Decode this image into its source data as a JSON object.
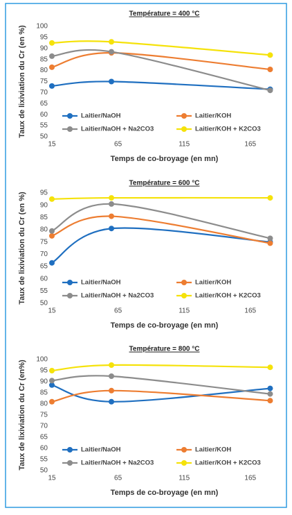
{
  "chart_data": [
    {
      "type": "line",
      "title": "Température = 400 °C",
      "x_label": "Temps de co-broyage (en mn)",
      "y_label": "Taux de lixiviation du Cr (en %)",
      "x": [
        15,
        60,
        180
      ],
      "xlim": [
        15,
        185
      ],
      "xticks": [
        15,
        65,
        115,
        165
      ],
      "ylim": [
        50,
        100
      ],
      "yticks": [
        50,
        55,
        60,
        65,
        70,
        75,
        80,
        85,
        90,
        95,
        100
      ],
      "series": [
        {
          "name": "Laitier/NaOH",
          "color": "#1f6fc0",
          "values": [
            73,
            75,
            71.5
          ]
        },
        {
          "name": "Laitier/KOH",
          "color": "#ed7d31",
          "values": [
            81.5,
            88,
            80.5
          ]
        },
        {
          "name": "Laitier/NaOH + Na2CO3",
          "color": "#8c8c8c",
          "values": [
            86.5,
            88.5,
            71
          ]
        },
        {
          "name": "Laitier/KOH + K2CO3",
          "color": "#f5e20a",
          "values": [
            92.5,
            93,
            87
          ]
        }
      ]
    },
    {
      "type": "line",
      "title": "Température = 600 °C",
      "x_label": "Temps de co-broyage (en mn)",
      "y_label": "Taux de lixiviation du Cr (en %)",
      "x": [
        15,
        60,
        180
      ],
      "xlim": [
        15,
        185
      ],
      "xticks": [
        15,
        65,
        115,
        165
      ],
      "ylim": [
        50,
        95
      ],
      "yticks": [
        50,
        55,
        60,
        65,
        70,
        75,
        80,
        85,
        90,
        95
      ],
      "series": [
        {
          "name": "Laitier/NaOH",
          "color": "#1f6fc0",
          "values": [
            66.5,
            80.5,
            75
          ]
        },
        {
          "name": "Laitier/KOH",
          "color": "#ed7d31",
          "values": [
            77.5,
            85.5,
            74.5
          ]
        },
        {
          "name": "Laitier/NaOH + Na2CO3",
          "color": "#8c8c8c",
          "values": [
            79.5,
            90.5,
            76.5
          ]
        },
        {
          "name": "Laitier/KOH + K2CO3",
          "color": "#f5e20a",
          "values": [
            92.5,
            93,
            93
          ]
        }
      ]
    },
    {
      "type": "line",
      "title": "Température = 800 °C",
      "x_label": "Temps de co-broyage (en mn)",
      "y_label": "Taux de lixiviation du Cr (en%)",
      "x": [
        15,
        60,
        180
      ],
      "xlim": [
        15,
        185
      ],
      "xticks": [
        15,
        65,
        115,
        165
      ],
      "ylim": [
        50,
        100
      ],
      "yticks": [
        50,
        55,
        60,
        65,
        70,
        75,
        80,
        85,
        90,
        95,
        100
      ],
      "series": [
        {
          "name": "Laitier/NaOH",
          "color": "#1f6fc0",
          "values": [
            88.5,
            81,
            87
          ]
        },
        {
          "name": "Laitier/KOH",
          "color": "#ed7d31",
          "values": [
            81,
            86,
            81.5
          ]
        },
        {
          "name": "Laitier/NaOH + Na2CO3",
          "color": "#8c8c8c",
          "values": [
            90.5,
            92.5,
            84.5
          ]
        },
        {
          "name": "Laitier/KOH + K2CO3",
          "color": "#f5e20a",
          "values": [
            95,
            97.5,
            96.5
          ]
        }
      ]
    }
  ]
}
